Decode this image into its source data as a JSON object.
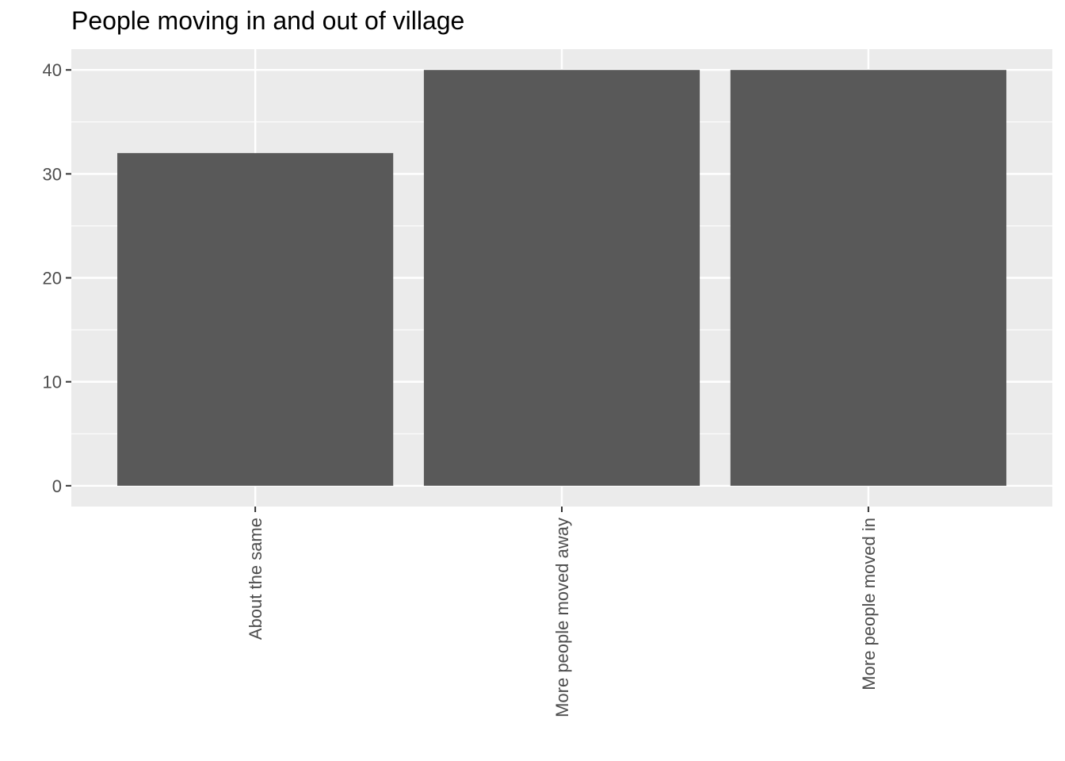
{
  "chart_data": {
    "type": "bar",
    "title": "People moving in and out of village",
    "xlabel": "",
    "ylabel": "",
    "categories": [
      "About the same",
      "More people moved away",
      "More people moved in"
    ],
    "values": [
      32,
      40,
      40
    ],
    "ylim": [
      -2,
      42
    ],
    "yticks": [
      0,
      10,
      20,
      30,
      40
    ],
    "ytick_labels": [
      "0",
      "10",
      "20",
      "30",
      "40"
    ],
    "grid": true,
    "legend": "none",
    "colors": {
      "bar": "#595959",
      "panel_background": "#ebebeb",
      "grid": "#ffffff",
      "tick_text": "#4d4d4d",
      "title_text": "#000000"
    }
  }
}
